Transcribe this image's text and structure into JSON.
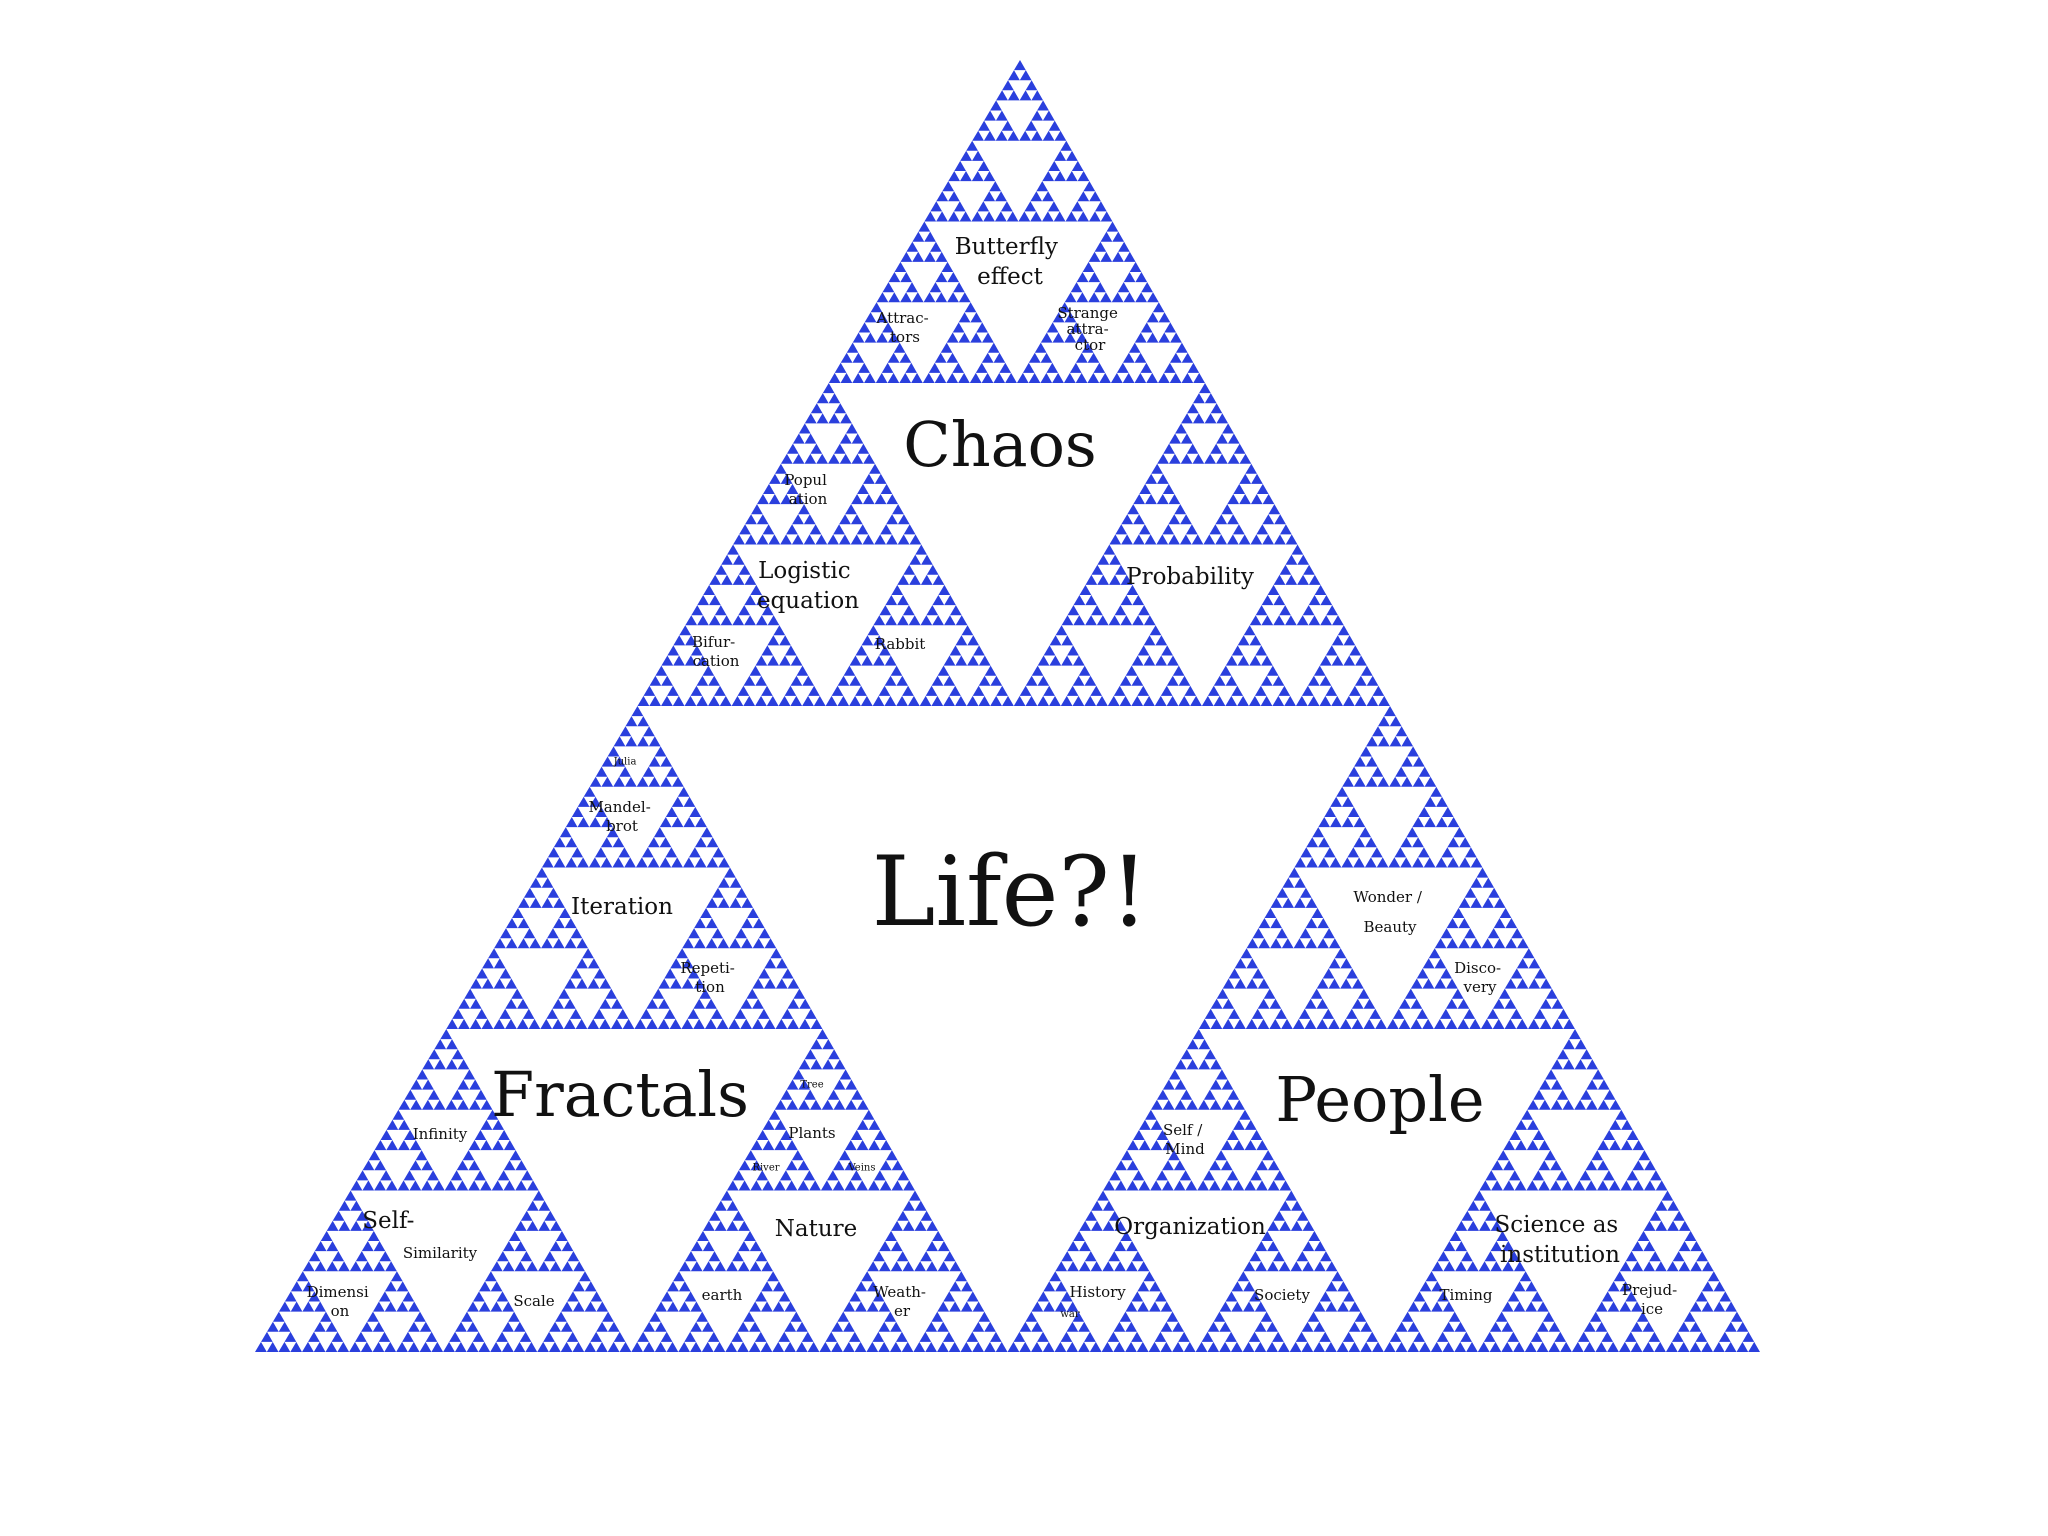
{
  "fractal": {
    "color": "#2a3fdd",
    "background": "#ffffff"
  },
  "labels": {
    "life": "Life?!",
    "chaos": "Chaos",
    "fractals": "Fractals",
    "people": "People",
    "butterfly_effect": [
      "Butterfly",
      "effect"
    ],
    "attractors": [
      "Attrac-",
      "tors"
    ],
    "strange_attractor": [
      "Strange",
      "attra-",
      "ctor"
    ],
    "population": [
      "Popul",
      "ation"
    ],
    "logistic_equation": [
      "Logistic",
      "equation"
    ],
    "bifurcation": [
      "Bifur-",
      "cation"
    ],
    "rabbit": "Rabbit",
    "probability": "Probability",
    "julia": "Julia",
    "mandelbrot": [
      "Mandel-",
      "brot"
    ],
    "iteration": "Iteration",
    "repetition": [
      "Repeti-",
      "tion"
    ],
    "infinity": "Infinity",
    "self_similarity": [
      "Self-",
      "Similarity"
    ],
    "dimension": [
      "Dimensi",
      "on"
    ],
    "scale": "Scale",
    "tree": "Tree",
    "plants": "Plants",
    "river": "River",
    "veins": "Veins",
    "nature": "Nature",
    "earth": "earth",
    "weather": [
      "Weath-",
      "er"
    ],
    "wonder_beauty": [
      "Wonder /",
      "Beauty"
    ],
    "discovery": [
      "Disco-",
      "very"
    ],
    "self_mind": [
      "Self /",
      "Mind"
    ],
    "organization": "Organization",
    "history_war": [
      "History",
      "war"
    ],
    "society": "Society",
    "science_institution": [
      "Science as",
      "institution"
    ],
    "timing": "Timing",
    "prejudice": [
      "Prejud-",
      "ice"
    ]
  }
}
